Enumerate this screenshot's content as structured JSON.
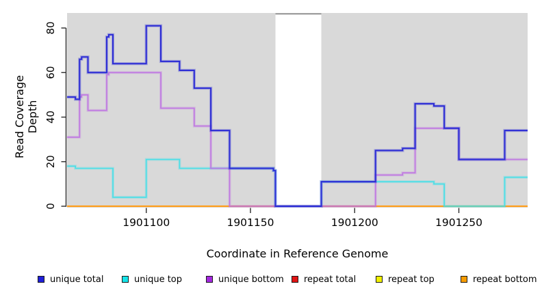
{
  "chart_data": {
    "type": "line",
    "subtype": "step-after-coverage",
    "title": "",
    "xlabel": "Coordinate in Reference Genome",
    "ylabel": "Read Coverage Depth",
    "x_domain": [
      1901062,
      1901283
    ],
    "y_domain": [
      0,
      86
    ],
    "x_ticks": [
      1901100,
      1901150,
      1901200,
      1901250
    ],
    "y_ticks": [
      0,
      20,
      40,
      60,
      80
    ],
    "grid": "off",
    "legend_position": "bottom",
    "plot_background_color": "#D9D9D9",
    "figure_background_color": "#FFFFFF",
    "background_regions": [
      {
        "name": "covered-region-left",
        "x0": 1901062,
        "x1": 1901162
      },
      {
        "name": "covered-region-right",
        "x0": 1901184,
        "x1": 1901283
      }
    ],
    "gap_region": {
      "name": "uncovered-gap",
      "x0": 1901162,
      "x1": 1901184,
      "top_border_color": "#909090"
    },
    "series": [
      {
        "name": "unique total",
        "color": "#2B2BD5",
        "width": 2.0,
        "breakpoints": [
          [
            1901062,
            49
          ],
          [
            1901066,
            48
          ],
          [
            1901068,
            66
          ],
          [
            1901069,
            67
          ],
          [
            1901072,
            60
          ],
          [
            1901081,
            76
          ],
          [
            1901082,
            77
          ],
          [
            1901084,
            64
          ],
          [
            1901100,
            81
          ],
          [
            1901107,
            65
          ],
          [
            1901116,
            61
          ],
          [
            1901123,
            53
          ],
          [
            1901131,
            34
          ],
          [
            1901140,
            17
          ],
          [
            1901161,
            16
          ],
          [
            1901162,
            0
          ],
          [
            1901184,
            11
          ],
          [
            1901210,
            25
          ],
          [
            1901223,
            26
          ],
          [
            1901229,
            46
          ],
          [
            1901238,
            45
          ],
          [
            1901243,
            35
          ],
          [
            1901250,
            21
          ],
          [
            1901272,
            34
          ]
        ]
      },
      {
        "name": "unique top",
        "color": "#3EDFE8",
        "width": 1.6,
        "breakpoints": [
          [
            1901062,
            18
          ],
          [
            1901066,
            17
          ],
          [
            1901084,
            4
          ],
          [
            1901100,
            21
          ],
          [
            1901116,
            17
          ],
          [
            1901161,
            16
          ],
          [
            1901162,
            0
          ],
          [
            1901184,
            11
          ],
          [
            1901238,
            10
          ],
          [
            1901243,
            0
          ],
          [
            1901272,
            13
          ]
        ]
      },
      {
        "name": "unique bottom",
        "color": "#BD70E2",
        "width": 1.6,
        "breakpoints": [
          [
            1901062,
            31
          ],
          [
            1901068,
            49
          ],
          [
            1901069,
            50
          ],
          [
            1901072,
            43
          ],
          [
            1901081,
            59
          ],
          [
            1901082,
            60
          ],
          [
            1901107,
            44
          ],
          [
            1901123,
            36
          ],
          [
            1901131,
            17
          ],
          [
            1901140,
            0
          ],
          [
            1901210,
            14
          ],
          [
            1901223,
            15
          ],
          [
            1901229,
            35
          ],
          [
            1901250,
            21
          ]
        ]
      },
      {
        "name": "repeat total",
        "color": "#DC1414",
        "width": 1.6,
        "breakpoints": [
          [
            1901062,
            0
          ]
        ]
      },
      {
        "name": "repeat top",
        "color": "#EDED00",
        "width": 1.6,
        "breakpoints": [
          [
            1901062,
            0
          ]
        ]
      },
      {
        "name": "repeat bottom",
        "color": "#FF9E1B",
        "width": 2.2,
        "breakpoints": [
          [
            1901062,
            0
          ]
        ]
      }
    ],
    "legend": [
      {
        "label": "unique total",
        "swatch_color": "#1F1FD9"
      },
      {
        "label": "unique top",
        "swatch_color": "#16E3E8"
      },
      {
        "label": "unique bottom",
        "swatch_color": "#A428DF"
      },
      {
        "label": "repeat total",
        "swatch_color": "#E01414"
      },
      {
        "label": "repeat top",
        "swatch_color": "#F0F000"
      },
      {
        "label": "repeat bottom",
        "swatch_color": "#F79C00"
      }
    ],
    "axis_color": "#2B2B2B",
    "tick_label_color": "#000000"
  }
}
